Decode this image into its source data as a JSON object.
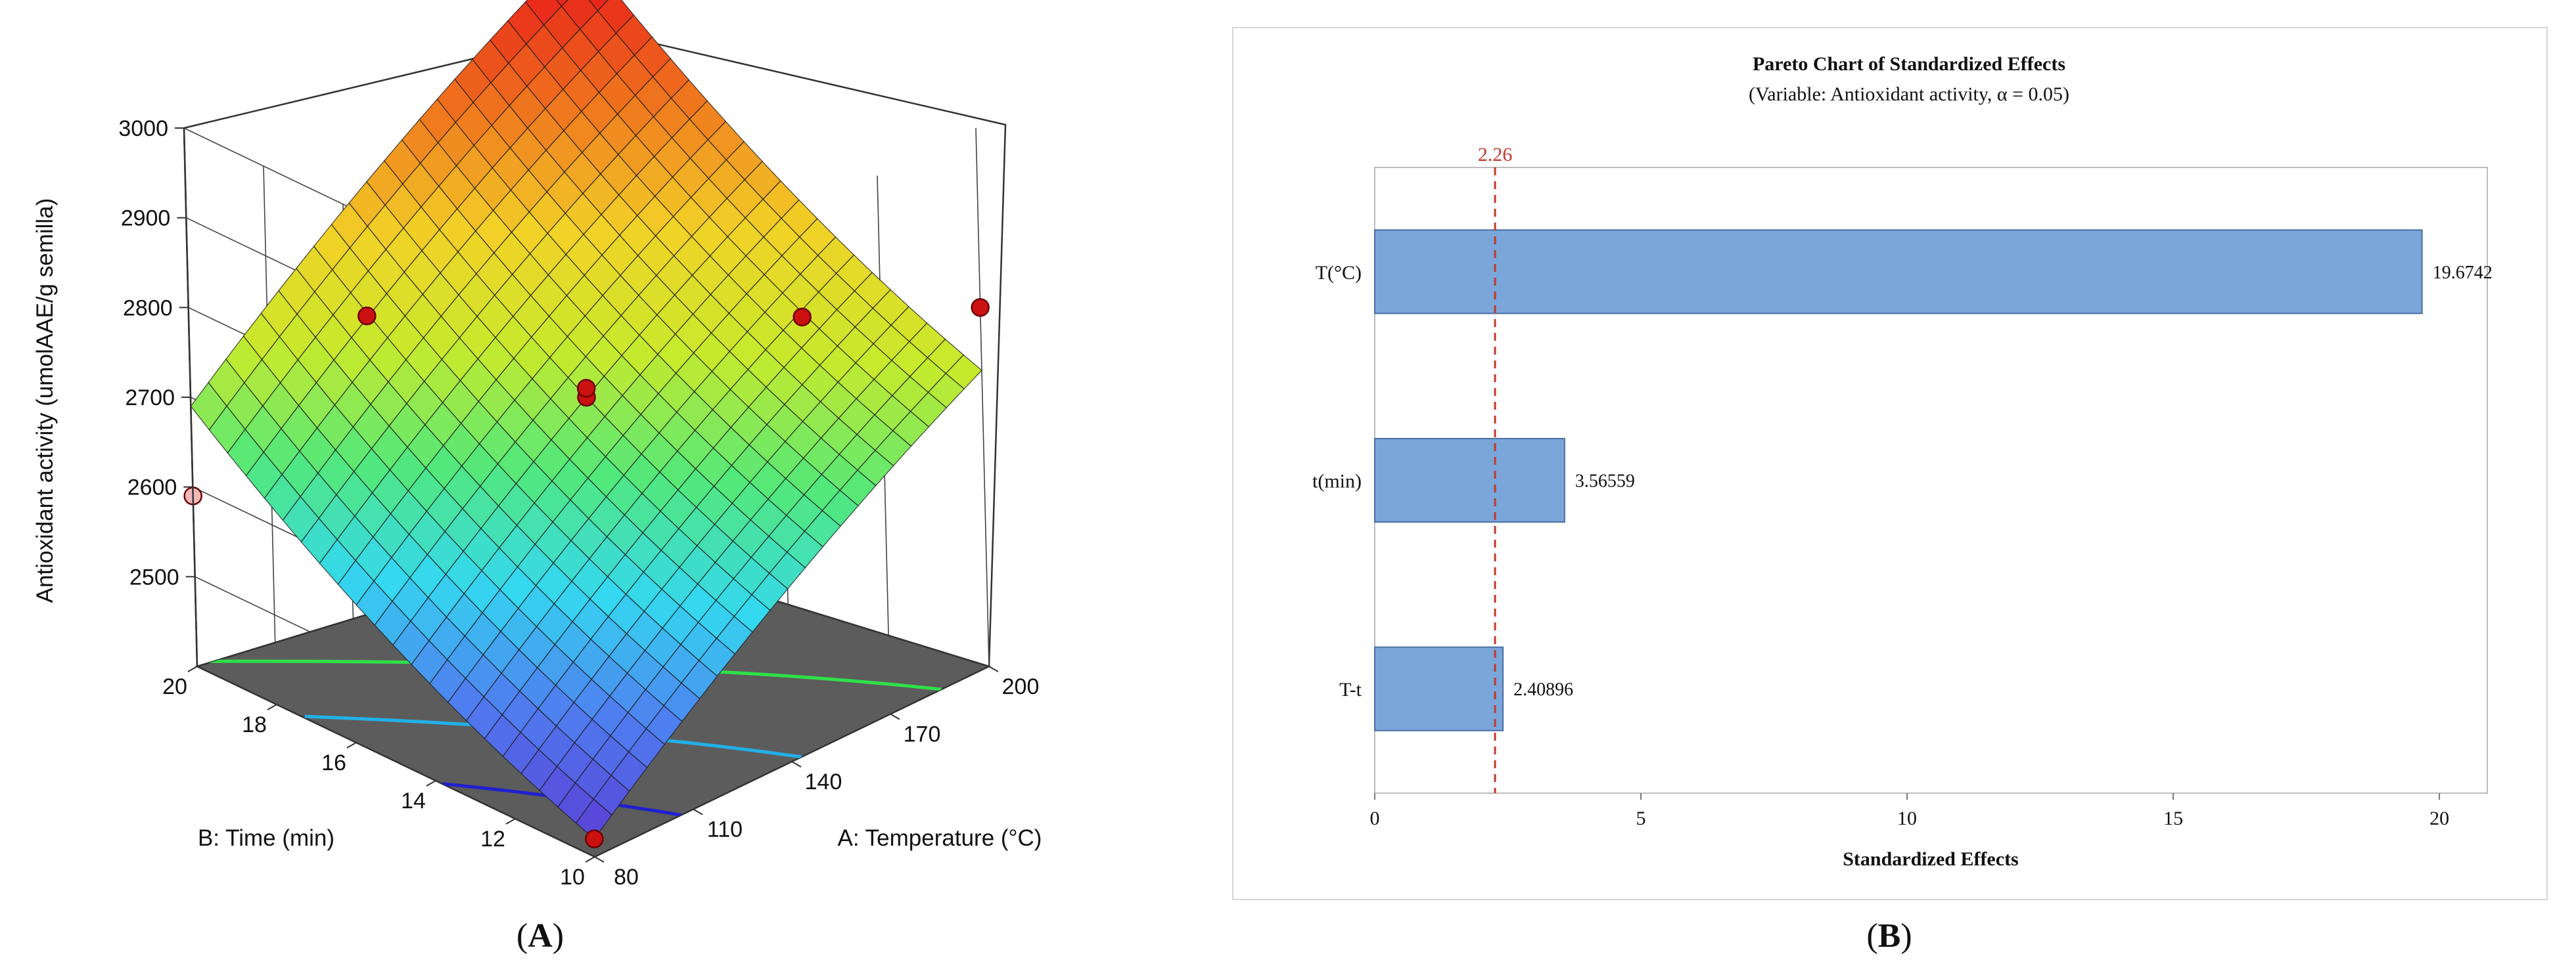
{
  "chart_data": [
    {
      "id": "A",
      "type": "surface3d",
      "panel_label": "A",
      "zlabel": "Antioxidant activity (umolAAE/g semilla)",
      "xlabel": "A: Temperature (°C)",
      "ylabel": "B: Time (min)",
      "x_ticks": [
        "80",
        "110",
        "140",
        "170",
        "200"
      ],
      "y_ticks": [
        "10",
        "12",
        "14",
        "16",
        "18",
        "20"
      ],
      "z_ticks": [
        "2500",
        "2600",
        "2700",
        "2800",
        "2900",
        "3000"
      ],
      "xlim": [
        80,
        200
      ],
      "ylim": [
        10,
        20
      ],
      "zlim": [
        2400,
        3000
      ],
      "colormap": [
        "#5a3fd6",
        "#4f7df0",
        "#34d8f0",
        "#52e87a",
        "#c6ea2c",
        "#f2d227",
        "#f07a1e",
        "#e8271a"
      ],
      "floor_color": "#5c5c5c",
      "design_points": [
        {
          "temperature": 80,
          "time": 10,
          "activity": 2420
        },
        {
          "temperature": 80,
          "time": 20,
          "activity": 2590
        },
        {
          "temperature": 200,
          "time": 10,
          "activity": 2800
        },
        {
          "temperature": 200,
          "time": 20,
          "activity": 2960
        },
        {
          "temperature": 140,
          "time": 15,
          "activity": 2700
        },
        {
          "temperature": 140,
          "time": 15,
          "activity": 2710
        },
        {
          "temperature": 110,
          "time": 18,
          "activity": 2780
        },
        {
          "temperature": 170,
          "time": 12,
          "activity": 2800
        }
      ],
      "contour_levels": [
        2500,
        2600,
        2700,
        2800,
        2900
      ]
    },
    {
      "id": "B",
      "type": "bar",
      "orientation": "horizontal",
      "panel_label": "B",
      "title": "Pareto Chart of Standardized Effects",
      "subtitle": "(Variable: Antioxidant activity, α = 0.05)",
      "categories": [
        "T(°C)",
        "t(min)",
        "T-t"
      ],
      "values": [
        19.6742,
        3.56559,
        2.40896
      ],
      "value_labels": [
        "19.6742",
        "3.56559",
        "2.40896"
      ],
      "xlabel": "Standardized Effects",
      "xlim": [
        0,
        20.9
      ],
      "x_ticks": [
        0,
        5,
        10,
        15,
        20
      ],
      "reference_line": {
        "value": 2.26,
        "label": "2.26"
      },
      "bar_color": "#7ba6da",
      "bar_edge": "#4a6fa5",
      "reference_color": "#c0392b"
    }
  ]
}
